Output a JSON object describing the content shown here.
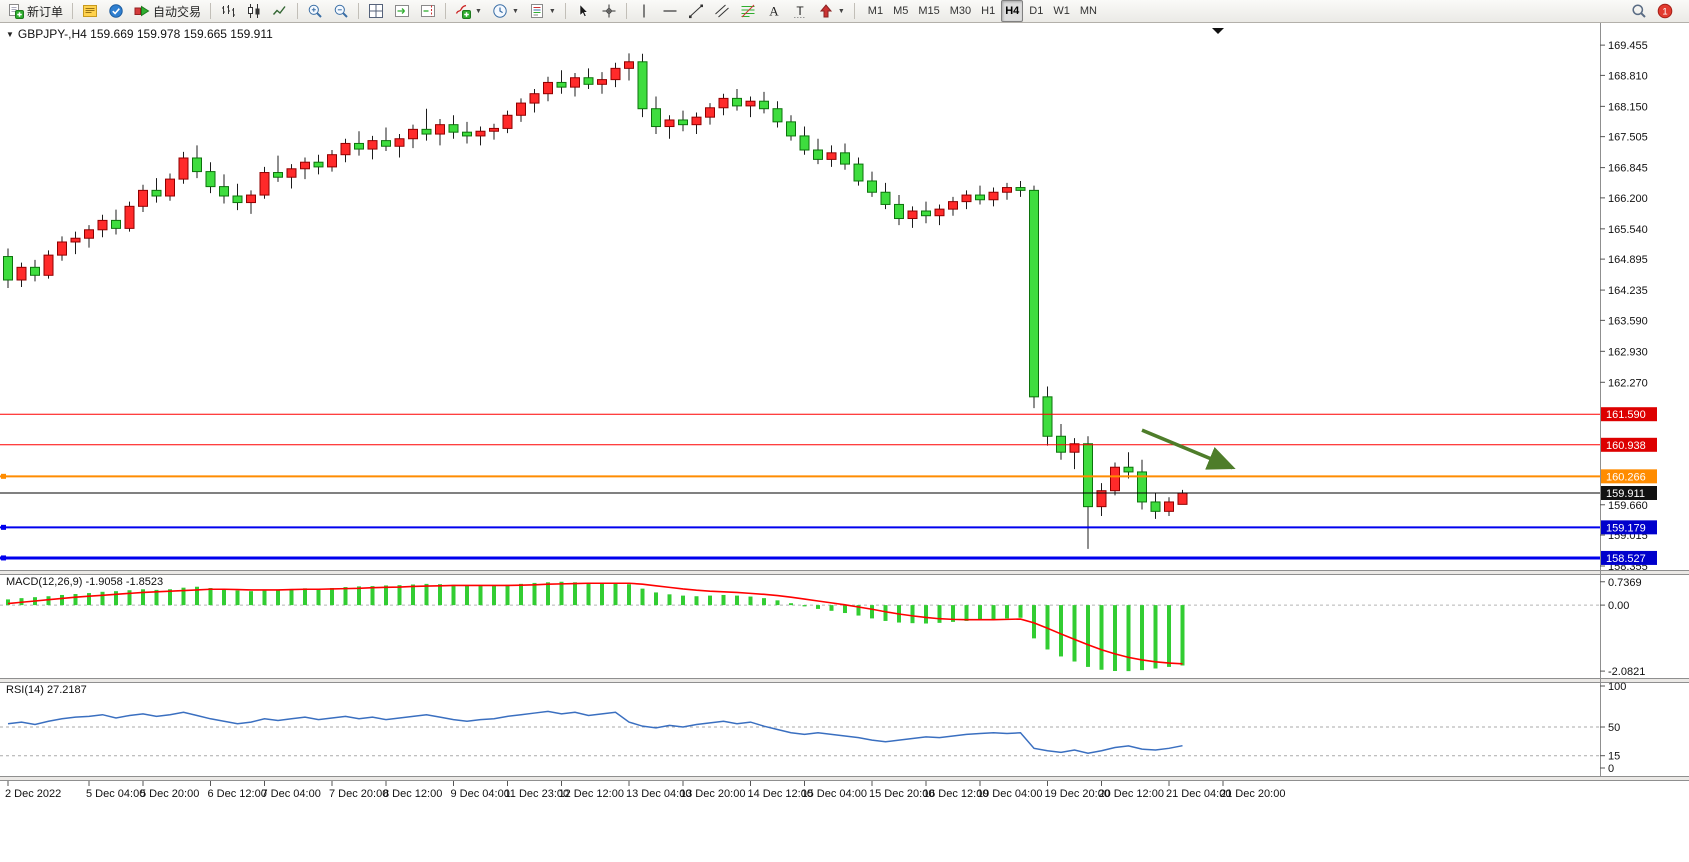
{
  "toolbar": {
    "buttons": [
      {
        "name": "new-order",
        "icon": "new-order-icon",
        "label": "新订单"
      },
      {
        "sep": true
      },
      {
        "name": "metaeditor",
        "icon": "metaeditor-icon"
      },
      {
        "name": "app-market",
        "icon": "market-icon"
      },
      {
        "name": "autotrading",
        "icon": "autotrading-icon",
        "label": "自动交易"
      },
      {
        "sep": true
      },
      {
        "name": "bar-chart-mode",
        "icon": "bar-chart-icon"
      },
      {
        "name": "candlestick-mode",
        "icon": "candlestick-icon"
      },
      {
        "name": "line-chart-mode",
        "icon": "line-chart-icon"
      },
      {
        "sep": true
      },
      {
        "name": "zoom-in",
        "icon": "zoom-in-icon"
      },
      {
        "name": "zoom-out",
        "icon": "zoom-out-icon"
      },
      {
        "sep": true
      },
      {
        "name": "tile-windows",
        "icon": "tile-windows-icon"
      },
      {
        "name": "auto-scroll",
        "icon": "auto-scroll-icon"
      },
      {
        "name": "chart-shift",
        "icon": "chart-shift-icon"
      },
      {
        "sep": true
      },
      {
        "name": "indicators",
        "icon": "indicators-icon",
        "dropdown": true
      },
      {
        "name": "periods",
        "icon": "periods-icon",
        "dropdown": true
      },
      {
        "name": "templates",
        "icon": "templates-icon",
        "dropdown": true
      },
      {
        "sep": true
      },
      {
        "name": "cursor",
        "icon": "cursor-icon"
      },
      {
        "name": "crosshair",
        "icon": "crosshair-icon"
      },
      {
        "sep": true
      },
      {
        "name": "vertical-line-tool",
        "icon": "vertical-line-icon"
      },
      {
        "name": "horizontal-line-tool",
        "icon": "horizontal-line-icon"
      },
      {
        "name": "trendline-tool",
        "icon": "trendline-icon"
      },
      {
        "name": "equidistant-channel-tool",
        "icon": "channel-icon"
      },
      {
        "name": "fibonacci-tool",
        "icon": "fibonacci-icon"
      },
      {
        "name": "text-tool",
        "icon": "text-icon"
      },
      {
        "name": "text-label-tool",
        "icon": "label-icon"
      },
      {
        "name": "arrows-tool",
        "icon": "arrows-icon",
        "dropdown": true
      },
      {
        "sep": true
      }
    ],
    "timeframes": [
      "M1",
      "M5",
      "M15",
      "M30",
      "H1",
      "H4",
      "D1",
      "W1",
      "MN"
    ],
    "active_timeframe": "H4",
    "right_buttons": [
      {
        "name": "search",
        "icon": "search-icon"
      },
      {
        "name": "notifications",
        "icon": "notification-icon",
        "badge": "1"
      }
    ]
  },
  "chart": {
    "collapse_arrow": "▼",
    "shift_marker": "▼"
  },
  "chart_data": {
    "type": "candlestick",
    "symbol": "GBPJPY-",
    "timeframe": "H4",
    "title": "GBPJPY-,H4 159.669 159.978 159.665 159.911",
    "last_ohlc": {
      "open": 159.669,
      "high": 159.978,
      "low": 159.665,
      "close": 159.911
    },
    "colors": {
      "up_fill": "#ff2a2a",
      "up_stroke": "#8f0000",
      "down_fill": "#3edd3e",
      "down_stroke": "#0c720c",
      "wick": "#1c1c1c",
      "macd_hist": "#32cd32",
      "macd_signal": "#ff0000",
      "rsi_line": "#3a6fc0",
      "arrow": "#4e7d2a"
    },
    "price_axis": {
      "max": 169.82,
      "min": 158.27,
      "ticks": [
        169.455,
        168.81,
        168.15,
        167.505,
        166.845,
        166.2,
        165.54,
        164.895,
        164.235,
        163.59,
        162.93,
        162.27,
        159.66,
        159.015,
        158.355
      ]
    },
    "hlines": [
      {
        "name": "resistance-line-1",
        "price": 161.59,
        "color": "#ff0000",
        "width": 1,
        "label": "161.590",
        "label_bg": "#dd0000",
        "handle": false
      },
      {
        "name": "resistance-line-2",
        "price": 160.938,
        "color": "#ff0000",
        "width": 1,
        "label": "160.938",
        "label_bg": "#dd0000",
        "handle": false
      },
      {
        "name": "orange-level-line",
        "price": 160.266,
        "color": "#ff8c00",
        "width": 2,
        "label": "160.266",
        "label_bg": "#ff8c00",
        "handle": true
      },
      {
        "name": "bid-price-line",
        "price": 159.911,
        "color": "#000000",
        "width": 1,
        "label": "159.911",
        "label_bg": "#111111",
        "handle": false
      },
      {
        "name": "support-line-1",
        "price": 159.179,
        "color": "#0000ee",
        "width": 2,
        "label": "159.179",
        "label_bg": "#0000cc",
        "handle": true
      },
      {
        "name": "support-line-2",
        "price": 158.527,
        "color": "#0000ee",
        "width": 3,
        "label": "158.527",
        "label_bg": "#0000cc",
        "handle": true
      }
    ],
    "arrow": {
      "from": {
        "bar": 84,
        "price": 161.25
      },
      "to": {
        "bar": 90.7,
        "price": 160.45
      }
    },
    "candles": [
      [
        164.95,
        165.12,
        164.28,
        164.45
      ],
      [
        164.45,
        164.82,
        164.3,
        164.72
      ],
      [
        164.72,
        164.88,
        164.42,
        164.55
      ],
      [
        164.55,
        165.08,
        164.48,
        164.98
      ],
      [
        164.98,
        165.38,
        164.86,
        165.26
      ],
      [
        165.26,
        165.48,
        165.0,
        165.34
      ],
      [
        165.34,
        165.62,
        165.14,
        165.52
      ],
      [
        165.52,
        165.84,
        165.36,
        165.72
      ],
      [
        165.72,
        165.95,
        165.42,
        165.55
      ],
      [
        165.55,
        166.12,
        165.48,
        166.02
      ],
      [
        166.02,
        166.48,
        165.9,
        166.36
      ],
      [
        166.36,
        166.62,
        166.1,
        166.24
      ],
      [
        166.24,
        166.72,
        166.14,
        166.6
      ],
      [
        166.6,
        167.18,
        166.5,
        167.05
      ],
      [
        167.05,
        167.32,
        166.62,
        166.76
      ],
      [
        166.76,
        166.96,
        166.3,
        166.44
      ],
      [
        166.44,
        166.7,
        166.08,
        166.24
      ],
      [
        166.24,
        166.5,
        165.94,
        166.1
      ],
      [
        166.1,
        166.36,
        165.86,
        166.26
      ],
      [
        166.26,
        166.86,
        166.18,
        166.74
      ],
      [
        166.74,
        167.1,
        166.54,
        166.64
      ],
      [
        166.64,
        166.92,
        166.4,
        166.82
      ],
      [
        166.82,
        167.06,
        166.6,
        166.96
      ],
      [
        166.96,
        167.12,
        166.7,
        166.86
      ],
      [
        166.86,
        167.22,
        166.76,
        167.12
      ],
      [
        167.12,
        167.46,
        166.96,
        167.36
      ],
      [
        167.36,
        167.62,
        167.1,
        167.24
      ],
      [
        167.24,
        167.52,
        167.02,
        167.42
      ],
      [
        167.42,
        167.7,
        167.2,
        167.3
      ],
      [
        167.3,
        167.56,
        167.06,
        167.46
      ],
      [
        167.46,
        167.76,
        167.26,
        167.66
      ],
      [
        167.66,
        168.1,
        167.42,
        167.56
      ],
      [
        167.56,
        167.88,
        167.32,
        167.76
      ],
      [
        167.76,
        167.96,
        167.46,
        167.6
      ],
      [
        167.6,
        167.82,
        167.36,
        167.52
      ],
      [
        167.52,
        167.72,
        167.32,
        167.62
      ],
      [
        167.62,
        167.78,
        167.44,
        167.68
      ],
      [
        167.68,
        168.06,
        167.58,
        167.96
      ],
      [
        167.96,
        168.32,
        167.82,
        168.22
      ],
      [
        168.22,
        168.52,
        168.02,
        168.42
      ],
      [
        168.42,
        168.78,
        168.26,
        168.66
      ],
      [
        168.66,
        168.92,
        168.42,
        168.56
      ],
      [
        168.56,
        168.86,
        168.36,
        168.76
      ],
      [
        168.76,
        168.96,
        168.52,
        168.62
      ],
      [
        168.62,
        168.88,
        168.42,
        168.72
      ],
      [
        168.72,
        169.08,
        168.56,
        168.96
      ],
      [
        168.96,
        169.28,
        168.7,
        169.1
      ],
      [
        169.1,
        169.27,
        167.92,
        168.1
      ],
      [
        168.1,
        168.36,
        167.56,
        167.72
      ],
      [
        167.72,
        167.96,
        167.46,
        167.86
      ],
      [
        167.86,
        168.06,
        167.62,
        167.76
      ],
      [
        167.76,
        168.02,
        167.56,
        167.92
      ],
      [
        167.92,
        168.22,
        167.76,
        168.12
      ],
      [
        168.12,
        168.42,
        167.96,
        168.32
      ],
      [
        168.32,
        168.52,
        168.06,
        168.16
      ],
      [
        168.16,
        168.36,
        167.92,
        168.26
      ],
      [
        168.26,
        168.46,
        168.0,
        168.1
      ],
      [
        168.1,
        168.26,
        167.7,
        167.82
      ],
      [
        167.82,
        167.96,
        167.42,
        167.52
      ],
      [
        167.52,
        167.72,
        167.12,
        167.22
      ],
      [
        167.22,
        167.46,
        166.92,
        167.02
      ],
      [
        167.02,
        167.32,
        166.86,
        167.16
      ],
      [
        167.16,
        167.36,
        166.8,
        166.92
      ],
      [
        166.92,
        167.06,
        166.46,
        166.56
      ],
      [
        166.56,
        166.76,
        166.22,
        166.32
      ],
      [
        166.32,
        166.52,
        165.96,
        166.06
      ],
      [
        166.06,
        166.26,
        165.62,
        165.76
      ],
      [
        165.76,
        166.02,
        165.56,
        165.92
      ],
      [
        165.92,
        166.12,
        165.66,
        165.82
      ],
      [
        165.82,
        166.06,
        165.62,
        165.96
      ],
      [
        165.96,
        166.22,
        165.82,
        166.12
      ],
      [
        166.12,
        166.36,
        165.96,
        166.26
      ],
      [
        166.26,
        166.46,
        166.06,
        166.16
      ],
      [
        166.16,
        166.42,
        166.02,
        166.32
      ],
      [
        166.32,
        166.52,
        166.16,
        166.42
      ],
      [
        166.42,
        166.56,
        166.22,
        166.36
      ],
      [
        166.36,
        166.46,
        161.72,
        161.96
      ],
      [
        161.96,
        162.18,
        160.92,
        161.12
      ],
      [
        161.12,
        161.38,
        160.62,
        160.78
      ],
      [
        160.78,
        161.08,
        160.42,
        160.96
      ],
      [
        160.96,
        161.12,
        158.72,
        159.62
      ],
      [
        159.62,
        160.12,
        159.42,
        159.96
      ],
      [
        159.96,
        160.56,
        159.86,
        160.46
      ],
      [
        160.46,
        160.78,
        160.22,
        160.36
      ],
      [
        160.36,
        160.62,
        159.56,
        159.72
      ],
      [
        159.72,
        159.92,
        159.36,
        159.52
      ],
      [
        159.52,
        159.82,
        159.42,
        159.72
      ],
      [
        159.669,
        159.978,
        159.665,
        159.911
      ]
    ],
    "time_labels": [
      {
        "text": "2 Dec 2022",
        "bar": 0
      },
      {
        "text": "5 Dec 04:00",
        "bar": 6
      },
      {
        "text": "5 Dec 20:00",
        "bar": 10
      },
      {
        "text": "6 Dec 12:00",
        "bar": 15
      },
      {
        "text": "7 Dec 04:00",
        "bar": 19
      },
      {
        "text": "7 Dec 20:00",
        "bar": 24
      },
      {
        "text": "8 Dec 12:00",
        "bar": 28
      },
      {
        "text": "9 Dec 04:00",
        "bar": 33
      },
      {
        "text": "11 Dec 23:00",
        "bar": 37
      },
      {
        "text": "12 Dec 12:00",
        "bar": 41
      },
      {
        "text": "13 Dec 04:00",
        "bar": 46
      },
      {
        "text": "13 Dec 20:00",
        "bar": 50
      },
      {
        "text": "14 Dec 12:00",
        "bar": 55
      },
      {
        "text": "15 Dec 04:00",
        "bar": 59
      },
      {
        "text": "15 Dec 20:00",
        "bar": 64
      },
      {
        "text": "16 Dec 12:00",
        "bar": 68
      },
      {
        "text": "19 Dec 04:00",
        "bar": 72
      },
      {
        "text": "19 Dec 20:00",
        "bar": 77
      },
      {
        "text": "20 Dec 12:00",
        "bar": 81
      },
      {
        "text": "21 Dec 04:00",
        "bar": 86
      },
      {
        "text": "21 Dec 20:00",
        "bar": 90
      }
    ],
    "indicators": {
      "macd": {
        "label": "MACD(12,26,9) -1.9058 -1.8523",
        "range": [
          -2.3,
          0.95
        ],
        "axis_labels": [
          {
            "v": 0.7369,
            "text": "0.7369"
          },
          {
            "v": 0,
            "text": "0.00"
          },
          {
            "v": -2.0821,
            "text": "-2.0821"
          }
        ],
        "values": [
          0.18,
          0.22,
          0.25,
          0.28,
          0.32,
          0.35,
          0.38,
          0.42,
          0.44,
          0.47,
          0.5,
          0.48,
          0.5,
          0.55,
          0.58,
          0.54,
          0.5,
          0.46,
          0.44,
          0.46,
          0.49,
          0.51,
          0.53,
          0.52,
          0.54,
          0.57,
          0.59,
          0.6,
          0.62,
          0.63,
          0.65,
          0.67,
          0.66,
          0.64,
          0.62,
          0.61,
          0.62,
          0.64,
          0.67,
          0.7,
          0.72,
          0.7369,
          0.72,
          0.7,
          0.68,
          0.69,
          0.66,
          0.52,
          0.4,
          0.34,
          0.3,
          0.28,
          0.3,
          0.32,
          0.3,
          0.27,
          0.22,
          0.15,
          0.06,
          -0.04,
          -0.12,
          -0.18,
          -0.25,
          -0.33,
          -0.42,
          -0.5,
          -0.55,
          -0.57,
          -0.58,
          -0.56,
          -0.53,
          -0.5,
          -0.47,
          -0.44,
          -0.42,
          -0.4,
          -1.05,
          -1.4,
          -1.62,
          -1.78,
          -1.95,
          -2.04,
          -2.08,
          -2.0821,
          -2.05,
          -2.0,
          -1.95,
          -1.9058
        ],
        "signal": [
          0.05,
          0.09,
          0.13,
          0.17,
          0.21,
          0.25,
          0.28,
          0.31,
          0.34,
          0.37,
          0.4,
          0.42,
          0.44,
          0.46,
          0.48,
          0.5,
          0.5,
          0.49,
          0.48,
          0.48,
          0.48,
          0.49,
          0.5,
          0.5,
          0.51,
          0.52,
          0.53,
          0.55,
          0.56,
          0.57,
          0.59,
          0.6,
          0.61,
          0.62,
          0.62,
          0.62,
          0.62,
          0.62,
          0.63,
          0.64,
          0.66,
          0.67,
          0.68,
          0.69,
          0.69,
          0.69,
          0.69,
          0.66,
          0.61,
          0.56,
          0.51,
          0.47,
          0.44,
          0.42,
          0.4,
          0.37,
          0.34,
          0.3,
          0.25,
          0.19,
          0.13,
          0.07,
          0.01,
          -0.06,
          -0.13,
          -0.21,
          -0.28,
          -0.34,
          -0.39,
          -0.43,
          -0.45,
          -0.46,
          -0.46,
          -0.46,
          -0.45,
          -0.44,
          -0.56,
          -0.73,
          -0.91,
          -1.08,
          -1.25,
          -1.41,
          -1.54,
          -1.65,
          -1.73,
          -1.79,
          -1.83,
          -1.8523
        ]
      },
      "rsi": {
        "label": "RSI(14) 27.2187",
        "range": [
          0,
          100
        ],
        "levels": [
          50,
          15
        ],
        "axis_labels": [
          {
            "v": 100,
            "text": "100"
          },
          {
            "v": 50,
            "text": "50"
          },
          {
            "v": 15,
            "text": "15"
          },
          {
            "v": 0,
            "text": "0"
          }
        ],
        "values": [
          54,
          56,
          53,
          57,
          60,
          62,
          63,
          65,
          61,
          64,
          66,
          63,
          65,
          68,
          64,
          60,
          57,
          54,
          56,
          60,
          58,
          60,
          62,
          59,
          61,
          63,
          60,
          62,
          59,
          61,
          63,
          65,
          62,
          59,
          57,
          59,
          60,
          63,
          65,
          67,
          69,
          66,
          68,
          64,
          66,
          68,
          56,
          51,
          49,
          52,
          50,
          53,
          55,
          57,
          54,
          56,
          51,
          47,
          43,
          41,
          43,
          41,
          39,
          37,
          34,
          32,
          34,
          36,
          38,
          37,
          39,
          41,
          42,
          43,
          42,
          43,
          24,
          21,
          19,
          22,
          18,
          21,
          25,
          27,
          23,
          22,
          24,
          27.2187
        ]
      }
    }
  }
}
